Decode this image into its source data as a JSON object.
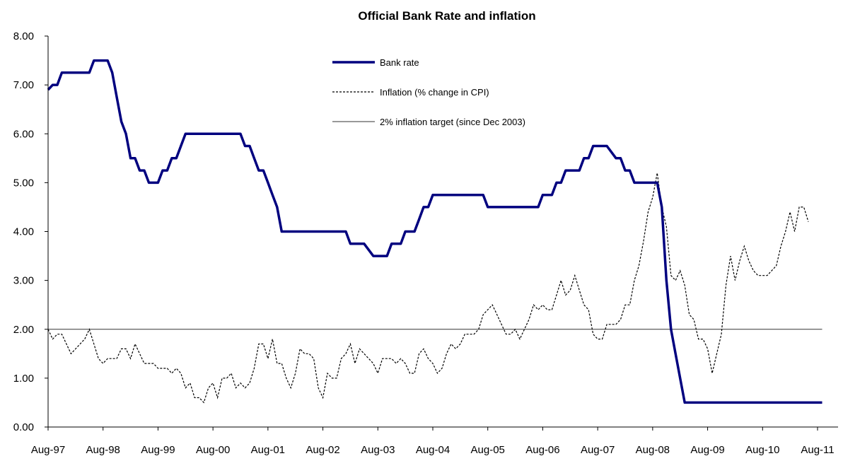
{
  "chart_data": {
    "type": "line",
    "title": "Official Bank Rate and inflation",
    "xlabel": "",
    "ylabel": "",
    "ylim": [
      0,
      8
    ],
    "yticks": [
      "0.00",
      "1.00",
      "2.00",
      "3.00",
      "4.00",
      "5.00",
      "6.00",
      "7.00",
      "8.00"
    ],
    "xticks": [
      "Aug-97",
      "Aug-98",
      "Aug-99",
      "Aug-00",
      "Aug-01",
      "Aug-02",
      "Aug-03",
      "Aug-04",
      "Aug-05",
      "Aug-06",
      "Aug-07",
      "Aug-08",
      "Aug-09",
      "Aug-10",
      "Aug-11"
    ],
    "legend_position": "top-center",
    "grid": false,
    "series": [
      {
        "name": "Bank rate",
        "color": "#00007f",
        "style": "solid-thick",
        "points": [
          [
            "1997-08",
            6.9
          ],
          [
            "1997-09",
            7.0
          ],
          [
            "1997-10",
            7.0
          ],
          [
            "1997-11",
            7.25
          ],
          [
            "1998-02",
            7.25
          ],
          [
            "1998-05",
            7.25
          ],
          [
            "1998-06",
            7.5
          ],
          [
            "1998-09",
            7.5
          ],
          [
            "1998-10",
            7.25
          ],
          [
            "1998-11",
            6.75
          ],
          [
            "1998-12",
            6.25
          ],
          [
            "1999-01",
            6.0
          ],
          [
            "1999-02",
            5.5
          ],
          [
            "1999-03",
            5.5
          ],
          [
            "1999-04",
            5.25
          ],
          [
            "1999-05",
            5.25
          ],
          [
            "1999-06",
            5.0
          ],
          [
            "1999-08",
            5.0
          ],
          [
            "1999-09",
            5.25
          ],
          [
            "1999-10",
            5.25
          ],
          [
            "1999-11",
            5.5
          ],
          [
            "1999-12",
            5.5
          ],
          [
            "2000-01",
            5.75
          ],
          [
            "2000-02",
            6.0
          ],
          [
            "2000-12",
            6.0
          ],
          [
            "2001-02",
            6.0
          ],
          [
            "2001-03",
            5.75
          ],
          [
            "2001-04",
            5.75
          ],
          [
            "2001-05",
            5.5
          ],
          [
            "2001-06",
            5.25
          ],
          [
            "2001-07",
            5.25
          ],
          [
            "2001-08",
            5.0
          ],
          [
            "2001-09",
            4.75
          ],
          [
            "2001-10",
            4.5
          ],
          [
            "2001-11",
            4.0
          ],
          [
            "2002-12",
            4.0
          ],
          [
            "2003-01",
            4.0
          ],
          [
            "2003-02",
            3.75
          ],
          [
            "2003-05",
            3.75
          ],
          [
            "2003-07",
            3.5
          ],
          [
            "2003-10",
            3.5
          ],
          [
            "2003-11",
            3.75
          ],
          [
            "2004-01",
            3.75
          ],
          [
            "2004-02",
            4.0
          ],
          [
            "2004-04",
            4.0
          ],
          [
            "2004-05",
            4.25
          ],
          [
            "2004-06",
            4.5
          ],
          [
            "2004-07",
            4.5
          ],
          [
            "2004-08",
            4.75
          ],
          [
            "2005-07",
            4.75
          ],
          [
            "2005-08",
            4.5
          ],
          [
            "2006-07",
            4.5
          ],
          [
            "2006-08",
            4.75
          ],
          [
            "2006-10",
            4.75
          ],
          [
            "2006-11",
            5.0
          ],
          [
            "2006-12",
            5.0
          ],
          [
            "2007-01",
            5.25
          ],
          [
            "2007-04",
            5.25
          ],
          [
            "2007-05",
            5.5
          ],
          [
            "2007-06",
            5.5
          ],
          [
            "2007-07",
            5.75
          ],
          [
            "2007-10",
            5.75
          ],
          [
            "2007-12",
            5.5
          ],
          [
            "2008-01",
            5.5
          ],
          [
            "2008-02",
            5.25
          ],
          [
            "2008-03",
            5.25
          ],
          [
            "2008-04",
            5.0
          ],
          [
            "2008-09",
            5.0
          ],
          [
            "2008-10",
            4.5
          ],
          [
            "2008-11",
            3.0
          ],
          [
            "2008-12",
            2.0
          ],
          [
            "2009-01",
            1.5
          ],
          [
            "2009-02",
            1.0
          ],
          [
            "2009-03",
            0.5
          ],
          [
            "2011-09",
            0.5
          ]
        ]
      },
      {
        "name": "Inflation (% change in CPI)",
        "color": "#000000",
        "style": "dashed",
        "points": [
          [
            "1997-08",
            2.0
          ],
          [
            "1997-09",
            1.8
          ],
          [
            "1997-10",
            1.9
          ],
          [
            "1997-11",
            1.9
          ],
          [
            "1997-12",
            1.7
          ],
          [
            "1998-01",
            1.5
          ],
          [
            "1998-02",
            1.6
          ],
          [
            "1998-03",
            1.7
          ],
          [
            "1998-04",
            1.8
          ],
          [
            "1998-05",
            2.0
          ],
          [
            "1998-06",
            1.7
          ],
          [
            "1998-07",
            1.4
          ],
          [
            "1998-08",
            1.3
          ],
          [
            "1998-09",
            1.4
          ],
          [
            "1998-10",
            1.4
          ],
          [
            "1998-11",
            1.4
          ],
          [
            "1998-12",
            1.6
          ],
          [
            "1999-01",
            1.6
          ],
          [
            "1999-02",
            1.4
          ],
          [
            "1999-03",
            1.7
          ],
          [
            "1999-04",
            1.5
          ],
          [
            "1999-05",
            1.3
          ],
          [
            "1999-06",
            1.3
          ],
          [
            "1999-07",
            1.3
          ],
          [
            "1999-08",
            1.2
          ],
          [
            "1999-09",
            1.2
          ],
          [
            "1999-10",
            1.2
          ],
          [
            "1999-11",
            1.1
          ],
          [
            "1999-12",
            1.2
          ],
          [
            "2000-01",
            1.1
          ],
          [
            "2000-02",
            0.8
          ],
          [
            "2000-03",
            0.9
          ],
          [
            "2000-04",
            0.6
          ],
          [
            "2000-05",
            0.6
          ],
          [
            "2000-06",
            0.5
          ],
          [
            "2000-07",
            0.8
          ],
          [
            "2000-08",
            0.9
          ],
          [
            "2000-09",
            0.6
          ],
          [
            "2000-10",
            1.0
          ],
          [
            "2000-11",
            1.0
          ],
          [
            "2000-12",
            1.1
          ],
          [
            "2001-01",
            0.8
          ],
          [
            "2001-02",
            0.9
          ],
          [
            "2001-03",
            0.8
          ],
          [
            "2001-04",
            0.9
          ],
          [
            "2001-05",
            1.2
          ],
          [
            "2001-06",
            1.7
          ],
          [
            "2001-07",
            1.7
          ],
          [
            "2001-08",
            1.4
          ],
          [
            "2001-09",
            1.8
          ],
          [
            "2001-10",
            1.3
          ],
          [
            "2001-11",
            1.3
          ],
          [
            "2001-12",
            1.0
          ],
          [
            "2002-01",
            0.8
          ],
          [
            "2002-02",
            1.1
          ],
          [
            "2002-03",
            1.6
          ],
          [
            "2002-04",
            1.5
          ],
          [
            "2002-05",
            1.5
          ],
          [
            "2002-06",
            1.4
          ],
          [
            "2002-07",
            0.8
          ],
          [
            "2002-08",
            0.6
          ],
          [
            "2002-09",
            1.1
          ],
          [
            "2002-10",
            1.0
          ],
          [
            "2002-11",
            1.0
          ],
          [
            "2002-12",
            1.4
          ],
          [
            "2003-01",
            1.5
          ],
          [
            "2003-02",
            1.7
          ],
          [
            "2003-03",
            1.3
          ],
          [
            "2003-04",
            1.6
          ],
          [
            "2003-05",
            1.5
          ],
          [
            "2003-06",
            1.4
          ],
          [
            "2003-07",
            1.3
          ],
          [
            "2003-08",
            1.1
          ],
          [
            "2003-09",
            1.4
          ],
          [
            "2003-10",
            1.4
          ],
          [
            "2003-11",
            1.4
          ],
          [
            "2003-12",
            1.3
          ],
          [
            "2004-01",
            1.4
          ],
          [
            "2004-02",
            1.3
          ],
          [
            "2004-03",
            1.1
          ],
          [
            "2004-04",
            1.1
          ],
          [
            "2004-05",
            1.5
          ],
          [
            "2004-06",
            1.6
          ],
          [
            "2004-07",
            1.4
          ],
          [
            "2004-08",
            1.3
          ],
          [
            "2004-09",
            1.1
          ],
          [
            "2004-10",
            1.2
          ],
          [
            "2004-11",
            1.5
          ],
          [
            "2004-12",
            1.7
          ],
          [
            "2005-01",
            1.6
          ],
          [
            "2005-02",
            1.7
          ],
          [
            "2005-03",
            1.9
          ],
          [
            "2005-04",
            1.9
          ],
          [
            "2005-05",
            1.9
          ],
          [
            "2005-06",
            2.0
          ],
          [
            "2005-07",
            2.3
          ],
          [
            "2005-08",
            2.4
          ],
          [
            "2005-09",
            2.5
          ],
          [
            "2005-10",
            2.3
          ],
          [
            "2005-11",
            2.1
          ],
          [
            "2005-12",
            1.9
          ],
          [
            "2006-01",
            1.9
          ],
          [
            "2006-02",
            2.0
          ],
          [
            "2006-03",
            1.8
          ],
          [
            "2006-04",
            2.0
          ],
          [
            "2006-05",
            2.2
          ],
          [
            "2006-06",
            2.5
          ],
          [
            "2006-07",
            2.4
          ],
          [
            "2006-08",
            2.5
          ],
          [
            "2006-09",
            2.4
          ],
          [
            "2006-10",
            2.4
          ],
          [
            "2006-11",
            2.7
          ],
          [
            "2006-12",
            3.0
          ],
          [
            "2007-01",
            2.7
          ],
          [
            "2007-02",
            2.8
          ],
          [
            "2007-03",
            3.1
          ],
          [
            "2007-04",
            2.8
          ],
          [
            "2007-05",
            2.5
          ],
          [
            "2007-06",
            2.4
          ],
          [
            "2007-07",
            1.9
          ],
          [
            "2007-08",
            1.8
          ],
          [
            "2007-09",
            1.8
          ],
          [
            "2007-10",
            2.1
          ],
          [
            "2007-11",
            2.1
          ],
          [
            "2007-12",
            2.1
          ],
          [
            "2008-01",
            2.2
          ],
          [
            "2008-02",
            2.5
          ],
          [
            "2008-03",
            2.5
          ],
          [
            "2008-04",
            3.0
          ],
          [
            "2008-05",
            3.3
          ],
          [
            "2008-06",
            3.8
          ],
          [
            "2008-07",
            4.4
          ],
          [
            "2008-08",
            4.7
          ],
          [
            "2008-09",
            5.2
          ],
          [
            "2008-10",
            4.5
          ],
          [
            "2008-11",
            4.1
          ],
          [
            "2008-12",
            3.1
          ],
          [
            "2009-01",
            3.0
          ],
          [
            "2009-02",
            3.2
          ],
          [
            "2009-03",
            2.9
          ],
          [
            "2009-04",
            2.3
          ],
          [
            "2009-05",
            2.2
          ],
          [
            "2009-06",
            1.8
          ],
          [
            "2009-07",
            1.8
          ],
          [
            "2009-08",
            1.6
          ],
          [
            "2009-09",
            1.1
          ],
          [
            "2009-10",
            1.5
          ],
          [
            "2009-11",
            1.9
          ],
          [
            "2009-12",
            2.9
          ],
          [
            "2010-01",
            3.5
          ],
          [
            "2010-02",
            3.0
          ],
          [
            "2010-03",
            3.4
          ],
          [
            "2010-04",
            3.7
          ],
          [
            "2010-05",
            3.4
          ],
          [
            "2010-06",
            3.2
          ],
          [
            "2010-07",
            3.1
          ],
          [
            "2010-08",
            3.1
          ],
          [
            "2010-09",
            3.1
          ],
          [
            "2010-10",
            3.2
          ],
          [
            "2010-11",
            3.3
          ],
          [
            "2010-12",
            3.7
          ],
          [
            "2011-01",
            4.0
          ],
          [
            "2011-02",
            4.4
          ],
          [
            "2011-03",
            4.0
          ],
          [
            "2011-04",
            4.5
          ],
          [
            "2011-05",
            4.5
          ],
          [
            "2011-06",
            4.2
          ]
        ]
      },
      {
        "name": "2% inflation target (since Dec 2003)",
        "color": "#333333",
        "style": "solid-thin",
        "points": [
          [
            "1997-08",
            2.0
          ],
          [
            "2011-09",
            2.0
          ]
        ]
      }
    ]
  }
}
